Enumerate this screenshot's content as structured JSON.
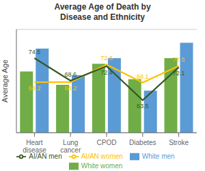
{
  "chart_data": {
    "type": "bar",
    "title": "Average Age of Death by\nDisease and Ethnicity",
    "ylabel": "Average Age",
    "categories": [
      "Heart\ndisease",
      "Lung\ncancer",
      "CPOD",
      "Diabetes",
      "Stroke"
    ],
    "series": [
      {
        "name": "White women",
        "type": "bar",
        "color": "#70ad47",
        "values": [
          71.0,
          67.5,
          73.0,
          69.0,
          74.5
        ]
      },
      {
        "name": "White men",
        "type": "bar",
        "color": "#5b9bd5",
        "values": [
          77.0,
          70.0,
          74.5,
          66.0,
          78.5
        ]
      },
      {
        "name": "AI/AN women",
        "type": "line",
        "color": "#ffc000",
        "values": [
          68.2,
          68.2,
          72.8,
          68.1,
          72.5
        ],
        "data_labels": true
      },
      {
        "name": "AI/AN men",
        "type": "line",
        "color": "#375623",
        "values": [
          74.5,
          68.6,
          72.4,
          63.5,
          72.1
        ],
        "data_labels": true
      }
    ],
    "ylim": [
      55,
      82
    ],
    "yticks": [
      55,
      60,
      65,
      70,
      75,
      80
    ],
    "grid": true,
    "tick_labels": "x",
    "legend": "bottom"
  }
}
